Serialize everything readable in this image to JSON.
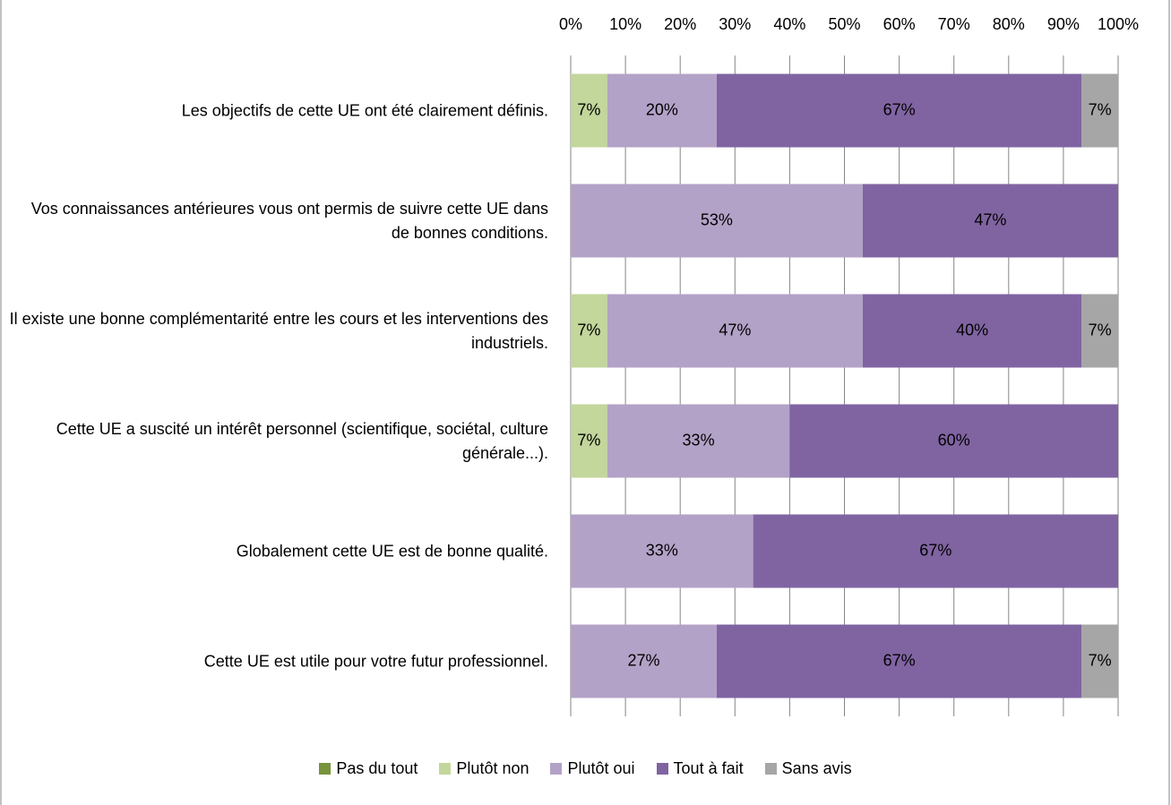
{
  "chart_data": {
    "type": "stacked-bar-horizontal",
    "categories": [
      "Les objectifs de cette UE ont été clairement définis.",
      "Vos connaissances antérieures vous ont permis de suivre cette UE dans de bonnes conditions.",
      "Il existe une bonne complémentarité entre les cours et les interventions des industriels.",
      "Cette UE a suscité un intérêt personnel (scientifique, sociétal, culture générale...).",
      "Globalement cette UE est de bonne qualité.",
      "Cette UE est utile pour votre futur professionnel."
    ],
    "series": [
      {
        "name": "Pas du tout",
        "color": "#77933c",
        "values": [
          null,
          null,
          null,
          null,
          null,
          null
        ],
        "value_labels": [
          null,
          null,
          null,
          null,
          null,
          null
        ]
      },
      {
        "name": "Plutôt non",
        "color": "#c3d69b",
        "values": [
          6.67,
          null,
          6.67,
          6.67,
          null,
          null
        ],
        "value_labels": [
          "7%",
          null,
          "7%",
          "7%",
          null,
          null
        ]
      },
      {
        "name": "Plutôt oui",
        "color": "#b3a2c7",
        "values": [
          20,
          53.33,
          46.67,
          33.33,
          33.33,
          26.67
        ],
        "value_labels": [
          "20%",
          "53%",
          "47%",
          "33%",
          "33%",
          "27%"
        ]
      },
      {
        "name": "Tout à fait",
        "color": "#8064a2",
        "values": [
          66.67,
          46.67,
          40,
          60,
          66.67,
          66.67
        ],
        "value_labels": [
          "67%",
          "47%",
          "40%",
          "60%",
          "67%",
          "67%"
        ]
      },
      {
        "name": "Sans avis",
        "color": "#a6a6a6",
        "values": [
          6.67,
          null,
          6.67,
          null,
          null,
          6.67
        ],
        "value_labels": [
          "7%",
          null,
          "7%",
          null,
          null,
          "7%"
        ]
      }
    ],
    "xlim": [
      0,
      100
    ],
    "xticks": [
      {
        "value": 0,
        "label": "0%"
      },
      {
        "value": 10,
        "label": "10%"
      },
      {
        "value": 20,
        "label": "20%"
      },
      {
        "value": 30,
        "label": "30%"
      },
      {
        "value": 40,
        "label": "40%"
      },
      {
        "value": 50,
        "label": "50%"
      },
      {
        "value": 60,
        "label": "60%"
      },
      {
        "value": 70,
        "label": "70%"
      },
      {
        "value": 80,
        "label": "80%"
      },
      {
        "value": 90,
        "label": "90%"
      },
      {
        "value": 100,
        "label": "100%"
      }
    ],
    "grid": true,
    "legend": "bottom"
  }
}
